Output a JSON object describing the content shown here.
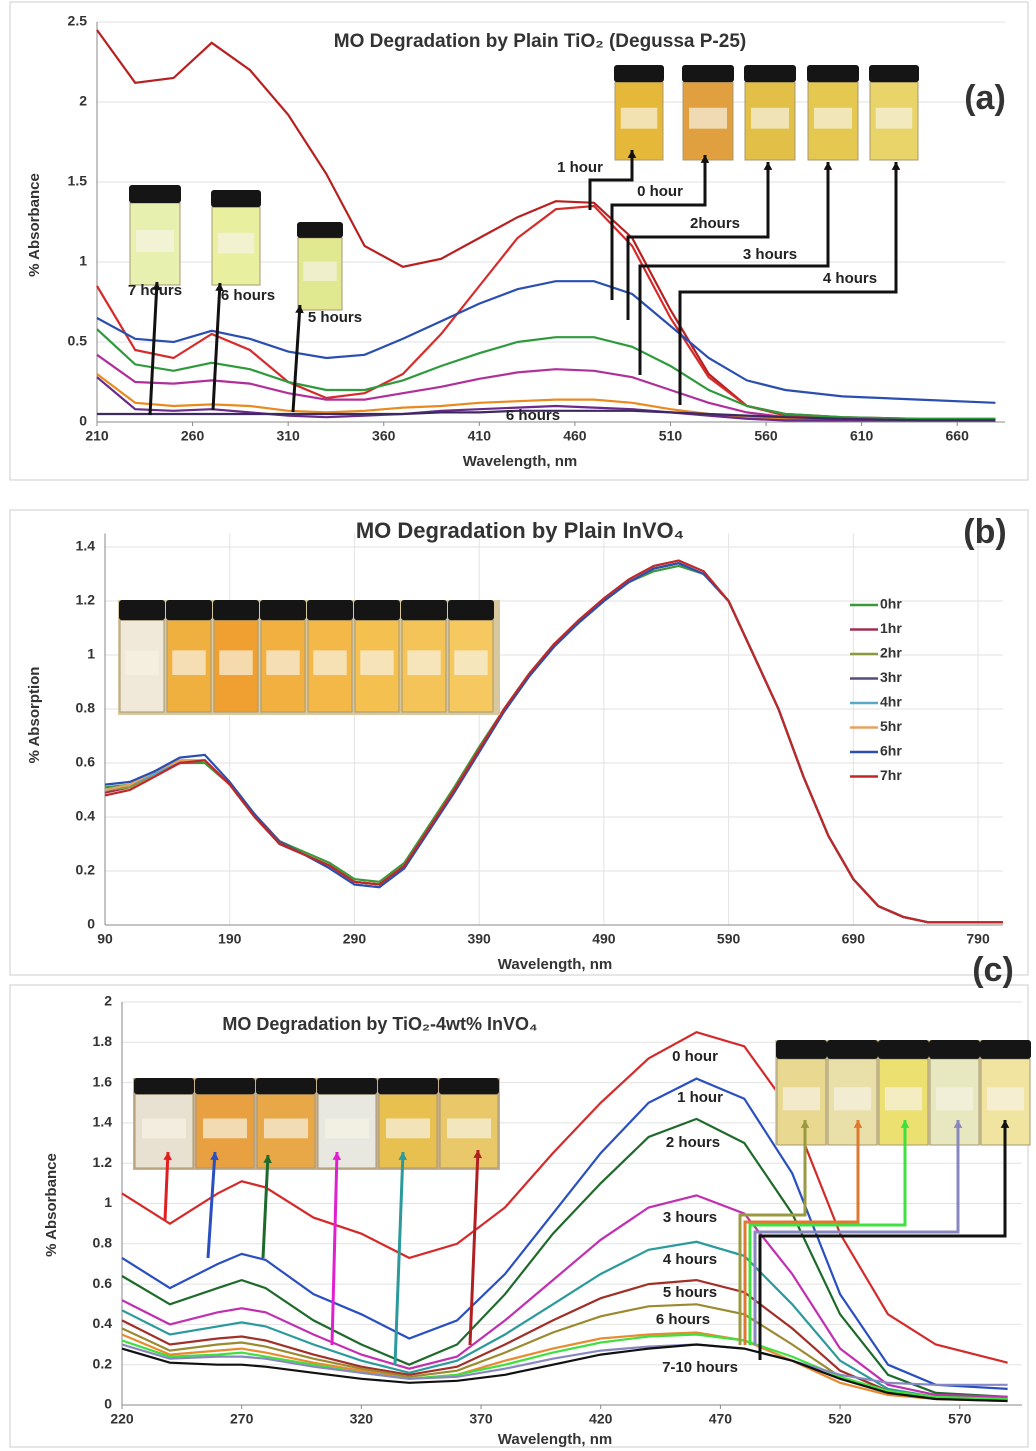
{
  "chart_data": [
    {
      "type": "line",
      "title": "MO Degradation  by Plain TiO₂ (Degussa P-25)",
      "panel_label": "(a)",
      "x_label": "Wavelength, nm",
      "y_label": "% Absorbance",
      "grid": "y",
      "xlim": [
        210,
        685
      ],
      "ylim": [
        0,
        2.5
      ],
      "xticks": [
        210,
        260,
        310,
        360,
        410,
        460,
        510,
        560,
        610,
        660
      ],
      "yticks": [
        0,
        0.5,
        1,
        1.5,
        2,
        2.5
      ],
      "annotations": [
        "1 hour",
        "0 hour",
        "2hours",
        "3 hours",
        "4 hours",
        "7 hours",
        "6 hours",
        "5 hours",
        "6 hours"
      ],
      "x": [
        210,
        230,
        250,
        270,
        290,
        310,
        330,
        350,
        370,
        390,
        410,
        430,
        450,
        470,
        490,
        510,
        530,
        550,
        570,
        600,
        640,
        680
      ],
      "series": [
        {
          "color": "#b82020",
          "values": [
            2.45,
            2.12,
            2.15,
            2.37,
            2.2,
            1.92,
            1.55,
            1.1,
            0.97,
            1.02,
            1.15,
            1.28,
            1.38,
            1.37,
            1.15,
            0.7,
            0.3,
            0.1,
            0.05,
            0.03,
            0.02,
            0.02
          ]
        },
        {
          "color": "#d62b2b",
          "values": [
            0.85,
            0.45,
            0.4,
            0.55,
            0.45,
            0.25,
            0.15,
            0.18,
            0.3,
            0.55,
            0.85,
            1.15,
            1.33,
            1.35,
            1.1,
            0.65,
            0.28,
            0.1,
            0.04,
            0.02,
            0.01,
            0.01
          ]
        },
        {
          "color": "#2a4fb0",
          "values": [
            0.65,
            0.52,
            0.5,
            0.57,
            0.52,
            0.44,
            0.4,
            0.42,
            0.52,
            0.63,
            0.74,
            0.83,
            0.88,
            0.88,
            0.8,
            0.6,
            0.4,
            0.26,
            0.2,
            0.16,
            0.14,
            0.12
          ]
        },
        {
          "color": "#2e9a3c",
          "values": [
            0.58,
            0.36,
            0.32,
            0.37,
            0.33,
            0.25,
            0.2,
            0.2,
            0.26,
            0.35,
            0.43,
            0.5,
            0.53,
            0.53,
            0.47,
            0.35,
            0.2,
            0.1,
            0.05,
            0.03,
            0.02,
            0.02
          ]
        },
        {
          "color": "#b0309a",
          "values": [
            0.42,
            0.25,
            0.24,
            0.26,
            0.24,
            0.18,
            0.14,
            0.14,
            0.18,
            0.22,
            0.27,
            0.31,
            0.33,
            0.32,
            0.28,
            0.2,
            0.12,
            0.06,
            0.03,
            0.02,
            0.01,
            0.01
          ]
        },
        {
          "color": "#e88a1e",
          "values": [
            0.3,
            0.12,
            0.1,
            0.11,
            0.1,
            0.07,
            0.06,
            0.07,
            0.09,
            0.1,
            0.12,
            0.13,
            0.14,
            0.14,
            0.12,
            0.08,
            0.05,
            0.03,
            0.02,
            0.01,
            0.01,
            0.01
          ]
        },
        {
          "color": "#6a2a8a",
          "values": [
            0.28,
            0.08,
            0.07,
            0.08,
            0.06,
            0.04,
            0.03,
            0.04,
            0.05,
            0.07,
            0.08,
            0.09,
            0.1,
            0.09,
            0.08,
            0.06,
            0.04,
            0.02,
            0.01,
            0.01,
            0.01,
            0.01
          ]
        },
        {
          "color": "#3c2a60",
          "values": [
            0.05,
            0.05,
            0.05,
            0.05,
            0.05,
            0.05,
            0.05,
            0.05,
            0.05,
            0.06,
            0.06,
            0.07,
            0.07,
            0.07,
            0.07,
            0.06,
            0.05,
            0.04,
            0.03,
            0.02,
            0.01,
            0.01
          ]
        }
      ]
    },
    {
      "type": "line",
      "title": "MO Degradation by Plain InVO₄",
      "panel_label": "(b)",
      "x_label": "Wavelength, nm",
      "y_label": "% Absorption",
      "grid": "both",
      "legend": "right",
      "xlim": [
        90,
        810
      ],
      "ylim": [
        0,
        1.45
      ],
      "xticks": [
        90,
        190,
        290,
        390,
        490,
        590,
        690,
        790
      ],
      "yticks": [
        0,
        0.2,
        0.4,
        0.6,
        0.8,
        1,
        1.2,
        1.4
      ],
      "x": [
        90,
        110,
        130,
        150,
        170,
        190,
        210,
        230,
        250,
        270,
        290,
        310,
        330,
        350,
        370,
        390,
        410,
        430,
        450,
        470,
        490,
        510,
        530,
        550,
        570,
        590,
        610,
        630,
        650,
        670,
        690,
        710,
        730,
        750,
        770,
        790,
        810
      ],
      "series": [
        {
          "name": "0hr",
          "color": "#3a9a3a",
          "values": [
            0.51,
            0.52,
            0.56,
            0.6,
            0.6,
            0.52,
            0.4,
            0.31,
            0.27,
            0.23,
            0.17,
            0.16,
            0.23,
            0.37,
            0.51,
            0.66,
            0.8,
            0.93,
            1.04,
            1.12,
            1.2,
            1.27,
            1.31,
            1.33,
            1.3,
            1.2,
            1.0,
            0.8,
            0.55,
            0.33,
            0.17,
            0.07,
            0.03,
            0.01,
            0.01,
            0.01,
            0.01
          ]
        },
        {
          "name": "1hr",
          "color": "#a03050",
          "values": [
            0.49,
            0.51,
            0.56,
            0.6,
            0.61,
            0.52,
            0.4,
            0.3,
            0.26,
            0.22,
            0.16,
            0.15,
            0.22,
            0.36,
            0.5,
            0.65,
            0.8,
            0.93,
            1.04,
            1.12,
            1.2,
            1.27,
            1.32,
            1.34,
            1.3,
            1.2,
            1.0,
            0.8,
            0.55,
            0.33,
            0.17,
            0.07,
            0.03,
            0.01,
            0.01,
            0.01,
            0.01
          ]
        },
        {
          "name": "2hr",
          "color": "#8a9a3a",
          "values": [
            0.5,
            0.51,
            0.56,
            0.6,
            0.61,
            0.52,
            0.4,
            0.3,
            0.26,
            0.22,
            0.16,
            0.15,
            0.22,
            0.36,
            0.5,
            0.65,
            0.8,
            0.93,
            1.04,
            1.12,
            1.2,
            1.27,
            1.32,
            1.34,
            1.3,
            1.2,
            1.0,
            0.8,
            0.55,
            0.33,
            0.17,
            0.07,
            0.03,
            0.01,
            0.01,
            0.01,
            0.01
          ]
        },
        {
          "name": "3hr",
          "color": "#5a4a7a",
          "values": [
            0.5,
            0.52,
            0.56,
            0.6,
            0.61,
            0.52,
            0.41,
            0.31,
            0.26,
            0.22,
            0.16,
            0.15,
            0.22,
            0.36,
            0.5,
            0.65,
            0.8,
            0.93,
            1.04,
            1.12,
            1.2,
            1.27,
            1.32,
            1.34,
            1.3,
            1.2,
            1.0,
            0.8,
            0.55,
            0.33,
            0.17,
            0.07,
            0.03,
            0.01,
            0.01,
            0.01,
            0.01
          ]
        },
        {
          "name": "4hr",
          "color": "#5aa8c8",
          "values": [
            0.5,
            0.52,
            0.56,
            0.61,
            0.61,
            0.52,
            0.4,
            0.3,
            0.26,
            0.22,
            0.16,
            0.15,
            0.22,
            0.36,
            0.5,
            0.65,
            0.8,
            0.93,
            1.04,
            1.12,
            1.2,
            1.27,
            1.32,
            1.34,
            1.3,
            1.2,
            1.0,
            0.8,
            0.55,
            0.33,
            0.17,
            0.07,
            0.03,
            0.01,
            0.01,
            0.01,
            0.01
          ]
        },
        {
          "name": "5hr",
          "color": "#e8a060",
          "values": [
            0.5,
            0.52,
            0.57,
            0.61,
            0.61,
            0.52,
            0.4,
            0.3,
            0.26,
            0.22,
            0.16,
            0.15,
            0.22,
            0.36,
            0.5,
            0.65,
            0.8,
            0.93,
            1.04,
            1.12,
            1.2,
            1.27,
            1.32,
            1.34,
            1.3,
            1.2,
            1.0,
            0.8,
            0.55,
            0.33,
            0.17,
            0.07,
            0.03,
            0.01,
            0.01,
            0.01,
            0.01
          ]
        },
        {
          "name": "6hr",
          "color": "#2a4fb0",
          "values": [
            0.52,
            0.53,
            0.57,
            0.62,
            0.63,
            0.53,
            0.41,
            0.3,
            0.26,
            0.21,
            0.15,
            0.14,
            0.21,
            0.35,
            0.49,
            0.64,
            0.79,
            0.92,
            1.03,
            1.12,
            1.2,
            1.27,
            1.32,
            1.34,
            1.3,
            1.2,
            1.0,
            0.8,
            0.55,
            0.33,
            0.17,
            0.07,
            0.03,
            0.01,
            0.01,
            0.01,
            0.01
          ]
        },
        {
          "name": "7hr",
          "color": "#c02828",
          "values": [
            0.48,
            0.5,
            0.55,
            0.6,
            0.61,
            0.52,
            0.4,
            0.3,
            0.26,
            0.22,
            0.16,
            0.15,
            0.22,
            0.36,
            0.5,
            0.65,
            0.8,
            0.93,
            1.04,
            1.13,
            1.21,
            1.28,
            1.33,
            1.35,
            1.31,
            1.2,
            1.0,
            0.8,
            0.55,
            0.33,
            0.17,
            0.07,
            0.03,
            0.01,
            0.01,
            0.01,
            0.01
          ]
        }
      ]
    },
    {
      "type": "line",
      "title": "MO Degradation  by TiO₂-4wt% InVO₄",
      "panel_label": "(c)",
      "x_label": "Wavelength, nm",
      "y_label": "% Absorbance",
      "grid": "y",
      "xlim": [
        220,
        596
      ],
      "ylim": [
        0,
        2
      ],
      "xticks": [
        220,
        270,
        320,
        370,
        420,
        470,
        520,
        570
      ],
      "yticks": [
        0,
        0.2,
        0.4,
        0.6,
        0.8,
        1,
        1.2,
        1.4,
        1.6,
        1.8,
        2
      ],
      "annotations": [
        "0 hour",
        "1 hour",
        "2 hours",
        "3 hours",
        "4 hours",
        "5 hours",
        "6 hours",
        "7-10 hours"
      ],
      "x": [
        220,
        240,
        260,
        270,
        280,
        300,
        320,
        340,
        360,
        380,
        400,
        420,
        440,
        460,
        480,
        500,
        520,
        540,
        560,
        590
      ],
      "series": [
        {
          "color": "#d42a2a",
          "values": [
            1.05,
            0.9,
            1.05,
            1.11,
            1.08,
            0.93,
            0.85,
            0.73,
            0.8,
            0.98,
            1.25,
            1.5,
            1.72,
            1.85,
            1.78,
            1.45,
            0.85,
            0.45,
            0.3,
            0.21
          ]
        },
        {
          "color": "#2a4fc0",
          "values": [
            0.73,
            0.58,
            0.7,
            0.75,
            0.72,
            0.55,
            0.45,
            0.33,
            0.42,
            0.65,
            0.95,
            1.25,
            1.5,
            1.62,
            1.52,
            1.15,
            0.55,
            0.2,
            0.1,
            0.08
          ]
        },
        {
          "color": "#1e6a2a",
          "values": [
            0.64,
            0.5,
            0.58,
            0.62,
            0.58,
            0.42,
            0.3,
            0.2,
            0.3,
            0.55,
            0.85,
            1.1,
            1.33,
            1.42,
            1.3,
            0.95,
            0.45,
            0.15,
            0.06,
            0.04
          ]
        },
        {
          "color": "#c030b0",
          "values": [
            0.52,
            0.4,
            0.46,
            0.48,
            0.46,
            0.35,
            0.25,
            0.18,
            0.24,
            0.42,
            0.62,
            0.82,
            0.98,
            1.04,
            0.95,
            0.65,
            0.28,
            0.1,
            0.05,
            0.04
          ]
        },
        {
          "color": "#2a9a9a",
          "values": [
            0.47,
            0.35,
            0.39,
            0.41,
            0.39,
            0.3,
            0.22,
            0.16,
            0.22,
            0.35,
            0.5,
            0.65,
            0.77,
            0.81,
            0.74,
            0.5,
            0.22,
            0.08,
            0.04,
            0.03
          ]
        },
        {
          "color": "#a03028",
          "values": [
            0.42,
            0.3,
            0.33,
            0.34,
            0.32,
            0.25,
            0.19,
            0.15,
            0.19,
            0.3,
            0.42,
            0.53,
            0.6,
            0.62,
            0.56,
            0.38,
            0.17,
            0.07,
            0.04,
            0.03
          ]
        },
        {
          "color": "#9a8a30",
          "values": [
            0.38,
            0.27,
            0.3,
            0.31,
            0.29,
            0.23,
            0.18,
            0.14,
            0.17,
            0.26,
            0.36,
            0.44,
            0.49,
            0.5,
            0.45,
            0.3,
            0.14,
            0.06,
            0.03,
            0.03
          ]
        },
        {
          "color": "#e88a30",
          "values": [
            0.35,
            0.25,
            0.27,
            0.28,
            0.26,
            0.21,
            0.17,
            0.13,
            0.15,
            0.22,
            0.28,
            0.33,
            0.35,
            0.36,
            0.32,
            0.22,
            0.11,
            0.05,
            0.03,
            0.02
          ]
        },
        {
          "color": "#40e040",
          "values": [
            0.32,
            0.24,
            0.25,
            0.26,
            0.24,
            0.2,
            0.16,
            0.13,
            0.15,
            0.2,
            0.26,
            0.31,
            0.34,
            0.35,
            0.32,
            0.24,
            0.14,
            0.07,
            0.04,
            0.03
          ]
        },
        {
          "color": "#8888c0",
          "values": [
            0.3,
            0.23,
            0.24,
            0.24,
            0.23,
            0.19,
            0.16,
            0.13,
            0.14,
            0.18,
            0.23,
            0.27,
            0.29,
            0.3,
            0.28,
            0.22,
            0.15,
            0.11,
            0.1,
            0.1
          ]
        },
        {
          "color": "#111111",
          "values": [
            0.28,
            0.21,
            0.2,
            0.2,
            0.19,
            0.16,
            0.13,
            0.11,
            0.12,
            0.15,
            0.2,
            0.25,
            0.28,
            0.3,
            0.28,
            0.22,
            0.13,
            0.06,
            0.03,
            0.02
          ]
        }
      ]
    }
  ]
}
